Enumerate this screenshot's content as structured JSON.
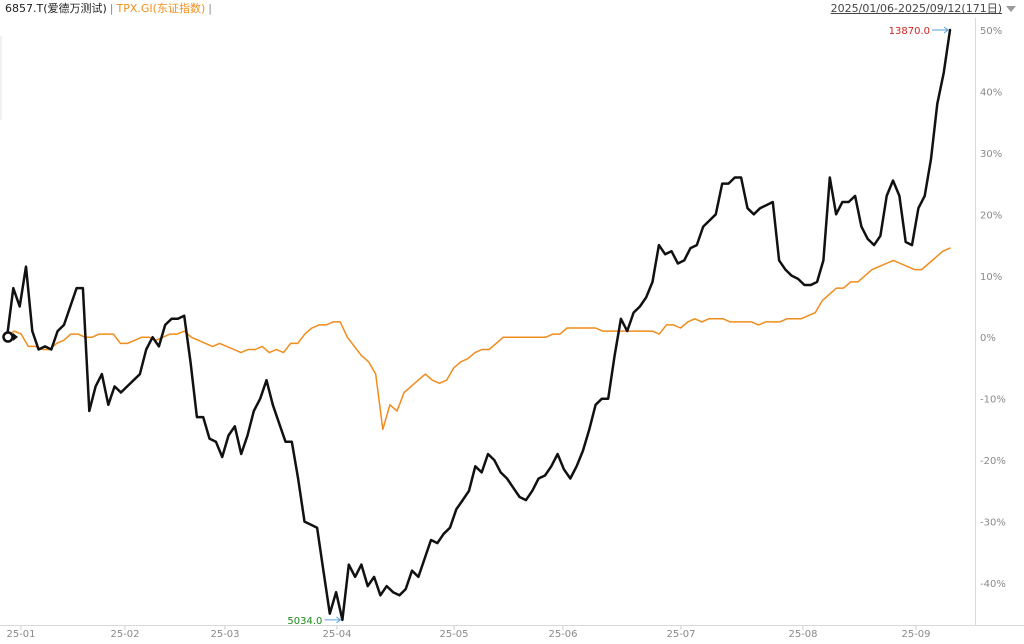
{
  "header": {
    "primary_label": "6857.T(爱德万测试)",
    "separator_1": "|",
    "compare_label": "TPX.GI(东证指数)",
    "separator_2": "|",
    "range_label": "2025/01/06-2025/09/12(171日)",
    "primary_color": "#222222",
    "compare_color": "#f0901e",
    "dropdown_icon": "chevron-down-icon"
  },
  "chart_data": {
    "type": "line",
    "title": "",
    "x_tick_labels": [
      "25-01",
      "25-02",
      "25-03",
      "25-04",
      "25-05",
      "25-06",
      "25-07",
      "25-08",
      "25-09"
    ],
    "y_axis": {
      "unit": "%",
      "ylim": [
        -46,
        51
      ],
      "ticks": [
        50,
        40,
        30,
        20,
        10,
        0,
        -10,
        -20,
        -30,
        -40
      ],
      "tick_labels": [
        "50%",
        "40%",
        "30%",
        "20%",
        "10%",
        "0%",
        "-10%",
        "-20%",
        "-30%",
        "-40%"
      ],
      "position": "right"
    },
    "grid": {
      "horizontal": false,
      "vertical": false
    },
    "series": [
      {
        "name": "6857.T(爱德万测试)",
        "color": "#111111",
        "values": [
          0,
          8,
          5,
          11.5,
          1,
          -2,
          -1.5,
          -2,
          1,
          2,
          5,
          8,
          8,
          -12,
          -8,
          -6,
          -11,
          -8,
          -9,
          -8,
          -7,
          -6,
          -2,
          0,
          -1.5,
          2,
          3,
          3,
          3.5,
          -4,
          -13,
          -13,
          -16.5,
          -17,
          -19.5,
          -16,
          -14.5,
          -19,
          -16,
          -12,
          -10,
          -7,
          -11,
          -14,
          -17,
          -17,
          -23,
          -30,
          -30.5,
          -31,
          -38,
          -45,
          -41.5,
          -46,
          -37,
          -39,
          -37,
          -40.5,
          -39,
          -42,
          -40.5,
          -41.5,
          -42,
          -41,
          -38,
          -39,
          -36,
          -33,
          -33.5,
          -32,
          -31,
          -28,
          -26.5,
          -25,
          -21,
          -22,
          -19,
          -20,
          -22,
          -23,
          -24.5,
          -26,
          -26.5,
          -25,
          -23,
          -22.5,
          -21,
          -19,
          -21.5,
          -23,
          -21,
          -18.5,
          -15,
          -11,
          -10,
          -10,
          -3,
          3,
          1,
          4,
          5,
          6.5,
          9,
          15,
          13.5,
          14,
          12,
          12.5,
          14.5,
          15,
          18,
          19,
          20,
          25,
          25,
          26,
          26,
          21,
          20,
          21,
          21.5,
          22,
          12.5,
          11,
          10,
          9.5,
          8.5,
          8.5,
          9,
          12.5,
          26,
          20,
          22,
          22,
          23,
          18,
          16,
          15,
          16.5,
          23,
          25.5,
          23,
          15.5,
          15,
          21,
          23,
          29,
          38,
          43,
          50
        ]
      },
      {
        "name": "TPX.GI(东证指数)",
        "color": "#f08c1c",
        "values": [
          0,
          1,
          0.5,
          -1.5,
          -1.5,
          -2,
          -2,
          -1,
          -0.5,
          0.5,
          0.5,
          0,
          0,
          0.5,
          0.5,
          0.5,
          -1,
          -1,
          -0.5,
          0,
          0,
          -0.5,
          0,
          0.5,
          0.5,
          1,
          0,
          -0.5,
          -1,
          -1.5,
          -1,
          -1.5,
          -2,
          -2.5,
          -2,
          -2,
          -1.5,
          -2.5,
          -2,
          -2.5,
          -1,
          -1,
          0.5,
          1.5,
          2,
          2,
          2.5,
          2.5,
          0,
          -1.5,
          -3,
          -4,
          -6,
          -15,
          -11,
          -12,
          -9,
          -8,
          -7,
          -6,
          -7,
          -7.5,
          -7,
          -5,
          -4,
          -3.5,
          -2.5,
          -2,
          -2,
          -1,
          0,
          0,
          0,
          0,
          0,
          0,
          0,
          0.5,
          0.5,
          1.5,
          1.5,
          1.5,
          1.5,
          1.5,
          1,
          1,
          1,
          1,
          1,
          1,
          1,
          1,
          0.5,
          2,
          2,
          1.5,
          2.5,
          3,
          2.5,
          3,
          3,
          3,
          2.5,
          2.5,
          2.5,
          2.5,
          2,
          2.5,
          2.5,
          2.5,
          3,
          3,
          3,
          3.5,
          4,
          6,
          7,
          8,
          8,
          9,
          9,
          10,
          11,
          11.5,
          12,
          12.5,
          12,
          11.5,
          11,
          11,
          12,
          13,
          14,
          14.5
        ]
      }
    ],
    "annotations": [
      {
        "label": "13870.0",
        "color": "#d22222",
        "series": 0,
        "at": "max"
      },
      {
        "label": "5034.0",
        "color": "#1c8a1c",
        "series": 0,
        "at": "min"
      }
    ]
  }
}
